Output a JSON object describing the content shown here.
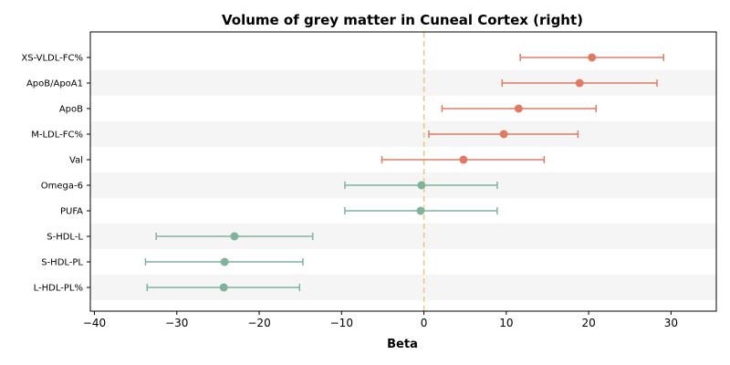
{
  "chart_data": {
    "type": "forest",
    "title": "Volume of grey matter in Cuneal Cortex (right)",
    "xlabel": "Beta",
    "xlim": [
      -40.5,
      35.5
    ],
    "xticks": [
      -40,
      -30,
      -20,
      -10,
      0,
      10,
      20,
      30
    ],
    "xtick_labels": [
      "−40",
      "−30",
      "−20",
      "−10",
      "0",
      "10",
      "20",
      "30"
    ],
    "reference_line": 0,
    "alternating_row_shading": true,
    "colors": {
      "positive": "#e07b63",
      "negative": "#7fb49b",
      "reference": "#f2c27b",
      "shade": "#f5f5f5"
    },
    "items": [
      {
        "label": "XS-VLDL-FC%",
        "beta": 20.4,
        "ci_low": 11.7,
        "ci_high": 29.1,
        "group": "positive"
      },
      {
        "label": "ApoB/ApoA1",
        "beta": 18.9,
        "ci_low": 9.5,
        "ci_high": 28.3,
        "group": "positive"
      },
      {
        "label": "ApoB",
        "beta": 11.5,
        "ci_low": 2.2,
        "ci_high": 20.9,
        "group": "positive"
      },
      {
        "label": "M-LDL-FC%",
        "beta": 9.7,
        "ci_low": 0.6,
        "ci_high": 18.7,
        "group": "positive"
      },
      {
        "label": "Val",
        "beta": 4.8,
        "ci_low": -5.1,
        "ci_high": 14.6,
        "group": "positive"
      },
      {
        "label": "Omega-6",
        "beta": -0.3,
        "ci_low": -9.6,
        "ci_high": 8.9,
        "group": "negative"
      },
      {
        "label": "PUFA",
        "beta": -0.4,
        "ci_low": -9.6,
        "ci_high": 8.9,
        "group": "negative"
      },
      {
        "label": "S-HDL-L",
        "beta": -23.0,
        "ci_low": -32.5,
        "ci_high": -13.5,
        "group": "negative"
      },
      {
        "label": "S-HDL-PL",
        "beta": -24.2,
        "ci_low": -33.8,
        "ci_high": -14.7,
        "group": "negative"
      },
      {
        "label": "L-HDL-PL%",
        "beta": -24.3,
        "ci_low": -33.6,
        "ci_high": -15.1,
        "group": "negative"
      }
    ]
  }
}
